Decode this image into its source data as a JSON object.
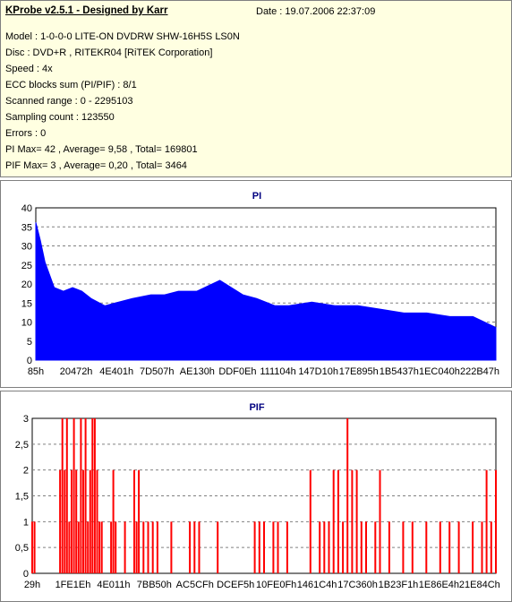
{
  "header": {
    "title": "KProbe v2.5.1 - Designed by Karr",
    "date": "Date : 19.07.2006 22:37:09",
    "lines": [
      "Model : 1-0-0-0 LITE-ON DVDRW SHW-16H5S  LS0N",
      "Disc : DVD+R , RITEKR04 [RiTEK Corporation]",
      "Speed : 4x",
      "ECC blocks sum (PI/PIF) : 8/1",
      "Scanned range : 0 - 2295103",
      "Sampling count : 123550",
      "Errors : 0",
      "PI Max= 42 , Average= 9,58 , Total= 169801",
      "PIF Max= 3 , Average= 0,20 , Total= 3464"
    ]
  },
  "colors": {
    "pi_fill": "#0000ff",
    "pif_fill": "#ff0000",
    "title": "#000080",
    "grid": "#808080",
    "info_bg": "#ffffe1"
  },
  "chart_data": [
    {
      "type": "area",
      "title": "PI",
      "ylim": [
        0,
        42
      ],
      "yticks": [
        "0",
        "5",
        "10",
        "15",
        "20",
        "25",
        "30",
        "35",
        "40"
      ],
      "xticks": [
        "85h",
        "20472h",
        "4E401h",
        "7D507h",
        "AE130h",
        "DDF0Eh",
        "111104h",
        "147D10h",
        "17E895h",
        "1B5437h",
        "1EC040h",
        "222B47h"
      ],
      "grid": true,
      "x": [
        0,
        0.01,
        0.02,
        0.04,
        0.06,
        0.08,
        0.1,
        0.12,
        0.15,
        0.18,
        0.21,
        0.25,
        0.28,
        0.31,
        0.35,
        0.4,
        0.45,
        0.48,
        0.52,
        0.55,
        0.6,
        0.65,
        0.7,
        0.75,
        0.8,
        0.85,
        0.9,
        0.95,
        1.0
      ],
      "values": [
        38,
        33,
        27,
        20,
        19,
        20,
        19,
        17,
        15,
        16,
        17,
        18,
        18,
        19,
        19,
        22,
        18,
        17,
        15,
        15,
        16,
        15,
        15,
        14,
        13,
        13,
        12,
        12,
        9
      ]
    },
    {
      "type": "bar",
      "title": "PIF",
      "ylim": [
        0,
        3
      ],
      "yticks": [
        "0",
        "0,5",
        "1",
        "1,5",
        "2",
        "2,5",
        "3"
      ],
      "xticks": [
        "29h",
        "1FE1Eh",
        "4E011h",
        "7BB50h",
        "AC5CFh",
        "DCEF5h",
        "10FE0Fh",
        "1461C4h",
        "17C360h",
        "1B23F1h",
        "1E86E4h",
        "21E84Ch"
      ],
      "grid": true,
      "x": [
        0.0,
        0.005,
        0.06,
        0.065,
        0.07,
        0.075,
        0.08,
        0.085,
        0.09,
        0.095,
        0.1,
        0.105,
        0.11,
        0.115,
        0.12,
        0.125,
        0.13,
        0.135,
        0.14,
        0.145,
        0.15,
        0.17,
        0.175,
        0.18,
        0.2,
        0.22,
        0.225,
        0.23,
        0.24,
        0.25,
        0.26,
        0.27,
        0.3,
        0.34,
        0.35,
        0.36,
        0.4,
        0.48,
        0.49,
        0.5,
        0.52,
        0.53,
        0.55,
        0.6,
        0.62,
        0.63,
        0.64,
        0.65,
        0.66,
        0.67,
        0.68,
        0.69,
        0.7,
        0.71,
        0.72,
        0.74,
        0.75,
        0.77,
        0.8,
        0.82,
        0.85,
        0.88,
        0.9,
        0.92,
        0.95,
        0.97,
        0.98,
        0.99,
        1.0
      ],
      "values": [
        1,
        1,
        2,
        3,
        2,
        3,
        1,
        2,
        3,
        2,
        1,
        3,
        2,
        3,
        1,
        2,
        3,
        3,
        2,
        1,
        1,
        1,
        2,
        1,
        1,
        2,
        1,
        2,
        1,
        1,
        1,
        1,
        1,
        1,
        1,
        1,
        1,
        1,
        1,
        1,
        1,
        1,
        1,
        2,
        1,
        1,
        1,
        2,
        2,
        1,
        3,
        2,
        2,
        1,
        1,
        1,
        2,
        1,
        1,
        1,
        1,
        1,
        1,
        1,
        1,
        1,
        2,
        1,
        2
      ]
    }
  ]
}
